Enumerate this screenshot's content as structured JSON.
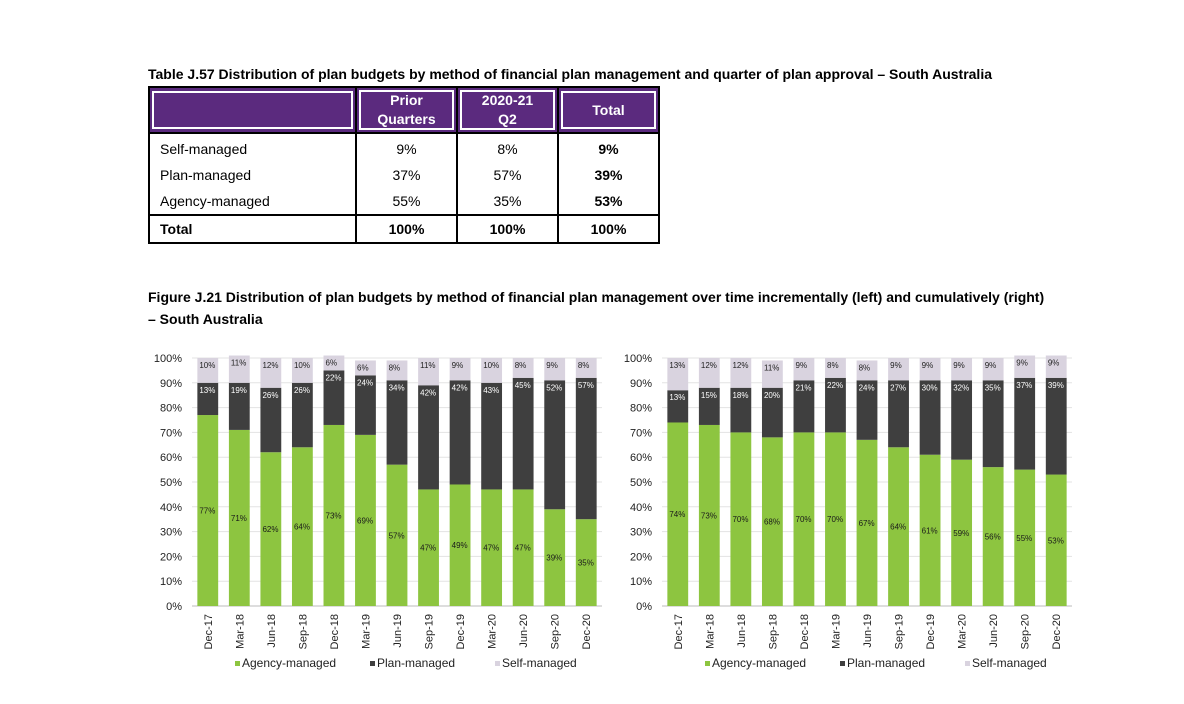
{
  "table": {
    "title": "Table J.57 Distribution of plan budgets by method of financial plan management and quarter of plan approval – South Australia",
    "header": {
      "col1_line1": "Prior",
      "col1_line2": "Quarters",
      "col2_line1": "2020-21",
      "col2_line2": "Q2",
      "col3": "Total"
    },
    "rows": [
      {
        "label": "Self-managed",
        "prior": "9%",
        "q2": "8%",
        "total": "9%"
      },
      {
        "label": "Plan-managed",
        "prior": "37%",
        "q2": "57%",
        "total": "39%"
      },
      {
        "label": "Agency-managed",
        "prior": "55%",
        "q2": "35%",
        "total": "53%"
      }
    ],
    "total_row": {
      "label": "Total",
      "prior": "100%",
      "q2": "100%",
      "total": "100%"
    }
  },
  "figure": {
    "title": "Figure J.21 Distribution of plan budgets by method of financial plan management over time incrementally (left) and cumulatively (right) – South Australia"
  },
  "colors": {
    "agency": "#8dc540",
    "plan": "#3f3f3f",
    "self": "#d9d3df",
    "header_purple": "#5b2a7e"
  },
  "chart_data": [
    {
      "type": "bar",
      "stacked": true,
      "categories": [
        "Dec-17",
        "Mar-18",
        "Jun-18",
        "Sep-18",
        "Dec-18",
        "Mar-19",
        "Jun-19",
        "Sep-19",
        "Dec-19",
        "Mar-20",
        "Jun-20",
        "Sep-20",
        "Dec-20"
      ],
      "series": [
        {
          "name": "Agency-managed",
          "values": [
            77,
            71,
            62,
            64,
            73,
            69,
            57,
            47,
            49,
            47,
            47,
            39,
            35
          ]
        },
        {
          "name": "Plan-managed",
          "values": [
            13,
            19,
            26,
            26,
            22,
            24,
            34,
            42,
            42,
            43,
            45,
            52,
            57
          ]
        },
        {
          "name": "Self-managed",
          "values": [
            10,
            11,
            12,
            10,
            6,
            6,
            8,
            11,
            9,
            10,
            8,
            9,
            8
          ]
        }
      ],
      "ylim": [
        0,
        100
      ],
      "yticks": [
        "0%",
        "10%",
        "20%",
        "30%",
        "40%",
        "50%",
        "60%",
        "70%",
        "80%",
        "90%",
        "100%"
      ],
      "legend": "bottom"
    },
    {
      "type": "bar",
      "stacked": true,
      "categories": [
        "Dec-17",
        "Mar-18",
        "Jun-18",
        "Sep-18",
        "Dec-18",
        "Mar-19",
        "Jun-19",
        "Sep-19",
        "Dec-19",
        "Mar-20",
        "Jun-20",
        "Sep-20",
        "Dec-20"
      ],
      "series": [
        {
          "name": "Agency-managed",
          "values": [
            74,
            73,
            70,
            68,
            70,
            70,
            67,
            64,
            61,
            59,
            56,
            55,
            53
          ]
        },
        {
          "name": "Plan-managed",
          "values": [
            13,
            15,
            18,
            20,
            21,
            22,
            24,
            27,
            30,
            32,
            35,
            37,
            39
          ]
        },
        {
          "name": "Self-managed",
          "values": [
            13,
            12,
            12,
            11,
            9,
            8,
            8,
            9,
            9,
            9,
            9,
            9,
            9
          ]
        }
      ],
      "ylim": [
        0,
        100
      ],
      "yticks": [
        "0%",
        "10%",
        "20%",
        "30%",
        "40%",
        "50%",
        "60%",
        "70%",
        "80%",
        "90%",
        "100%"
      ],
      "legend": "bottom"
    }
  ]
}
